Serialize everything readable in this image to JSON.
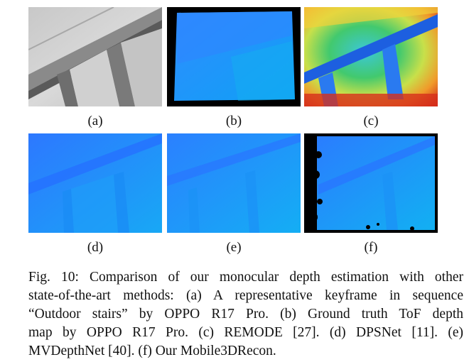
{
  "figure": {
    "panels": [
      {
        "id": "a",
        "label": "(a)",
        "content": "grayscale photo of outdoor stone stairs"
      },
      {
        "id": "b",
        "label": "(b)",
        "content": "ToF ground-truth depth map (blue)"
      },
      {
        "id": "c",
        "label": "(c)",
        "content": "REMODE depth map (jet colormap)"
      },
      {
        "id": "d",
        "label": "(d)",
        "content": "DPSNet depth map (blue)"
      },
      {
        "id": "e",
        "label": "(e)",
        "content": "MVDepthNet depth map (blue)"
      },
      {
        "id": "f",
        "label": "(f)",
        "content": "Mobile3DRecon depth map with black holes"
      }
    ],
    "caption": [
      "Fig. 10: Comparison of our monocular depth estimation with other",
      "state-of-the-art methods: (a) A representative keyframe in sequence",
      "“Outdoor stairs” by OPPO R17 Pro.  (b) Ground truth ToF depth",
      "map by OPPO R17 Pro. (c) REMODE [27]. (d) DPSNet [11]. (e)",
      "MVDepthNet [40]. (f) Our Mobile3DRecon."
    ]
  }
}
